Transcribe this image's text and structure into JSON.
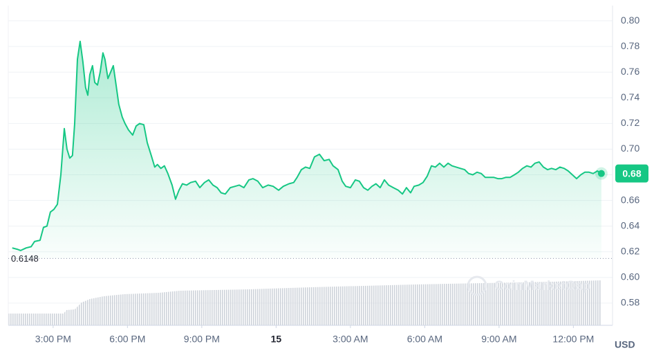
{
  "chart_data": {
    "type": "line",
    "watermark": "CoinMarketCap",
    "currency": "USD",
    "reference": 0.6148,
    "last_label": "0.68",
    "color": "#16c784",
    "grid": true,
    "xlim": [
      13.19,
      37.58
    ],
    "ylim": [
      0.5627,
      0.8119
    ],
    "xticks": [
      {
        "value": 15,
        "label": "3:00 PM"
      },
      {
        "value": 18,
        "label": "6:00 PM"
      },
      {
        "value": 21,
        "label": "9:00 PM"
      },
      {
        "value": 24,
        "label": "15"
      },
      {
        "value": 27,
        "label": "3:00 AM"
      },
      {
        "value": 30,
        "label": "6:00 AM"
      },
      {
        "value": 33,
        "label": "9:00 AM"
      },
      {
        "value": 36,
        "label": "12:00 PM"
      }
    ],
    "yticks": [
      0.58,
      {
        "value": 0.6,
        "label": "0.60"
      },
      0.62,
      0.64,
      0.66,
      0.68,
      {
        "value": 0.7,
        "label": "0.70"
      },
      0.72,
      0.74,
      0.76,
      0.78,
      {
        "value": 0.8,
        "label": "0.80"
      }
    ],
    "x": [
      13.35,
      13.55,
      13.69,
      13.91,
      14.11,
      14.25,
      14.47,
      14.61,
      14.75,
      14.89,
      15.03,
      15.17,
      15.31,
      15.45,
      15.56,
      15.67,
      15.78,
      15.87,
      15.98,
      16.09,
      16.2,
      16.31,
      16.4,
      16.48,
      16.59,
      16.68,
      16.79,
      16.9,
      17.01,
      17.09,
      17.21,
      17.32,
      17.43,
      17.54,
      17.65,
      17.79,
      17.9,
      18.04,
      18.21,
      18.35,
      18.49,
      18.66,
      18.8,
      18.96,
      19.1,
      19.21,
      19.35,
      19.49,
      19.63,
      19.8,
      19.94,
      20.08,
      20.22,
      20.39,
      20.55,
      20.75,
      20.92,
      21.11,
      21.28,
      21.45,
      21.62,
      21.78,
      21.95,
      22.15,
      22.34,
      22.51,
      22.7,
      22.9,
      23.07,
      23.26,
      23.46,
      23.68,
      23.88,
      24.1,
      24.29,
      24.52,
      24.71,
      24.85,
      25.02,
      25.19,
      25.36,
      25.55,
      25.75,
      25.94,
      26.14,
      26.3,
      26.5,
      26.67,
      26.81,
      27.0,
      27.2,
      27.36,
      27.53,
      27.7,
      27.87,
      28.03,
      28.2,
      28.37,
      28.54,
      28.73,
      28.93,
      29.1,
      29.26,
      29.43,
      29.57,
      29.76,
      29.93,
      30.1,
      30.27,
      30.43,
      30.6,
      30.77,
      30.94,
      31.1,
      31.27,
      31.44,
      31.61,
      31.77,
      31.94,
      32.11,
      32.28,
      32.44,
      32.61,
      32.78,
      32.95,
      33.11,
      33.28,
      33.45,
      33.62,
      33.78,
      33.95,
      34.12,
      34.29,
      34.45,
      34.62,
      34.79,
      34.96,
      35.12,
      35.29,
      35.46,
      35.63,
      35.79,
      35.96,
      36.13,
      36.3,
      36.46,
      36.63,
      36.8,
      36.97,
      37.13
    ],
    "values": [
      0.623,
      0.622,
      0.621,
      0.623,
      0.624,
      0.628,
      0.629,
      0.639,
      0.64,
      0.651,
      0.653,
      0.657,
      0.68,
      0.716,
      0.7,
      0.693,
      0.695,
      0.72,
      0.77,
      0.784,
      0.768,
      0.748,
      0.742,
      0.758,
      0.765,
      0.752,
      0.75,
      0.76,
      0.775,
      0.77,
      0.755,
      0.76,
      0.765,
      0.75,
      0.735,
      0.725,
      0.72,
      0.715,
      0.711,
      0.718,
      0.72,
      0.719,
      0.705,
      0.695,
      0.686,
      0.688,
      0.685,
      0.687,
      0.681,
      0.672,
      0.661,
      0.668,
      0.673,
      0.672,
      0.674,
      0.675,
      0.67,
      0.674,
      0.676,
      0.672,
      0.67,
      0.666,
      0.665,
      0.67,
      0.671,
      0.672,
      0.67,
      0.676,
      0.677,
      0.675,
      0.67,
      0.672,
      0.671,
      0.668,
      0.671,
      0.673,
      0.674,
      0.678,
      0.684,
      0.686,
      0.685,
      0.694,
      0.696,
      0.691,
      0.692,
      0.687,
      0.684,
      0.675,
      0.671,
      0.67,
      0.676,
      0.675,
      0.67,
      0.668,
      0.671,
      0.673,
      0.67,
      0.676,
      0.672,
      0.67,
      0.668,
      0.665,
      0.67,
      0.666,
      0.671,
      0.672,
      0.674,
      0.679,
      0.687,
      0.686,
      0.689,
      0.686,
      0.689,
      0.687,
      0.686,
      0.685,
      0.684,
      0.681,
      0.68,
      0.682,
      0.681,
      0.678,
      0.678,
      0.678,
      0.677,
      0.677,
      0.678,
      0.678,
      0.68,
      0.682,
      0.685,
      0.687,
      0.686,
      0.689,
      0.69,
      0.686,
      0.684,
      0.685,
      0.684,
      0.686,
      0.685,
      0.683,
      0.68,
      0.677,
      0.68,
      0.682,
      0.682,
      0.681,
      0.683,
      0.681
    ]
  }
}
